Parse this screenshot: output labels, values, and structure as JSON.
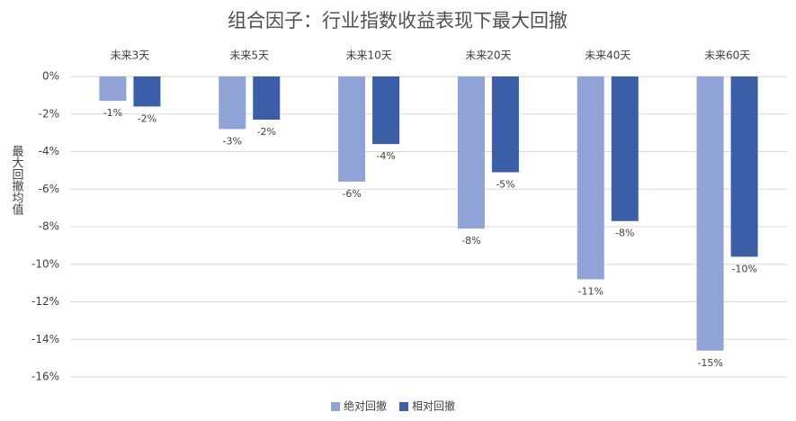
{
  "chart_data": {
    "type": "bar",
    "title": "组合因子：行业指数收益表现下最大回撤",
    "y_label": "最大回撤均值",
    "categories": [
      "未来3天",
      "未来5天",
      "未来10天",
      "未来20天",
      "未来40天",
      "未来60天"
    ],
    "series": [
      {
        "name": "绝对回撤",
        "color": "#8fa3d6",
        "values": [
          -1.3,
          -2.8,
          -5.6,
          -8.1,
          -10.8,
          -14.6
        ],
        "value_labels": [
          "-1%",
          "-3%",
          "-6%",
          "-8%",
          "-11%",
          "-15%"
        ]
      },
      {
        "name": "相对回撤",
        "color": "#3a5ea8",
        "values": [
          -1.6,
          -2.3,
          -3.6,
          -5.1,
          -7.7,
          -9.6
        ],
        "value_labels": [
          "-2%",
          "-2%",
          "-4%",
          "-5%",
          "-8%",
          "-10%"
        ]
      }
    ],
    "ylim": [
      -16,
      0
    ],
    "yticks": [
      {
        "value": 0,
        "label": "0%"
      },
      {
        "value": -2,
        "label": "-2%"
      },
      {
        "value": -4,
        "label": "-4%"
      },
      {
        "value": -6,
        "label": "-6%"
      },
      {
        "value": -8,
        "label": "-8%"
      },
      {
        "value": -10,
        "label": "-10%"
      },
      {
        "value": -12,
        "label": "-12%"
      },
      {
        "value": -14,
        "label": "-14%"
      },
      {
        "value": -16,
        "label": "-16%"
      }
    ],
    "grid": true
  }
}
